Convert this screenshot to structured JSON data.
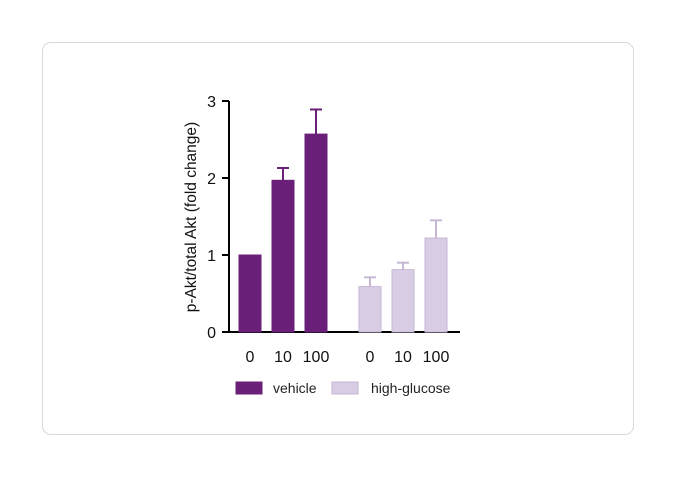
{
  "chart_data": {
    "type": "bar",
    "title": "",
    "xlabel": "",
    "ylabel": "p-Akt/total Akt (fold change)",
    "ylim": [
      0,
      3
    ],
    "yticks": [
      "0",
      "1",
      "2",
      "3"
    ],
    "categories": [
      "0",
      "10",
      "100"
    ],
    "series": [
      {
        "name": "vehicle",
        "values": [
          1.0,
          1.97,
          2.57
        ],
        "errors": [
          0,
          0.16,
          0.32
        ],
        "color": "#6a1f78"
      },
      {
        "name": "high-glucose",
        "values": [
          0.59,
          0.81,
          1.22
        ],
        "errors": [
          0.12,
          0.09,
          0.23
        ],
        "color": "#d9cde6"
      }
    ],
    "legend_position": "bottom",
    "grid": false
  }
}
